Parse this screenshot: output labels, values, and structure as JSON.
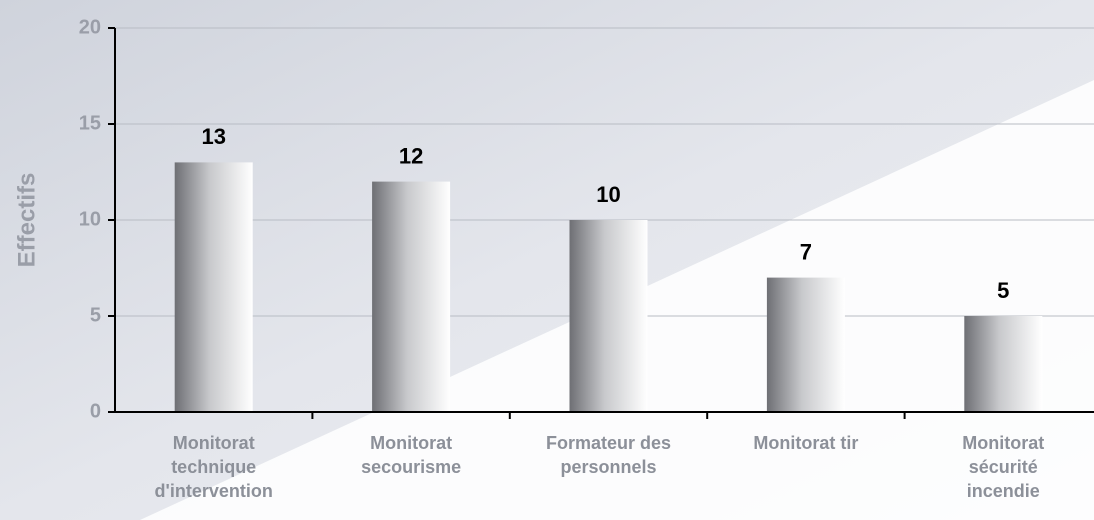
{
  "chart_data": {
    "type": "bar",
    "y_label": "Effectifs",
    "categories": [
      "Monitorat\ntechnique\nd'intervention",
      "Monitorat\nsecourisme",
      "Formateur des\npersonnels",
      "Monitorat tir",
      "Monitorat\nsécurité\nincendie"
    ],
    "values": [
      13,
      12,
      10,
      7,
      5
    ],
    "ylim": [
      0,
      20
    ],
    "yticks": [
      0,
      5,
      10,
      15,
      20
    ],
    "grid": true
  }
}
